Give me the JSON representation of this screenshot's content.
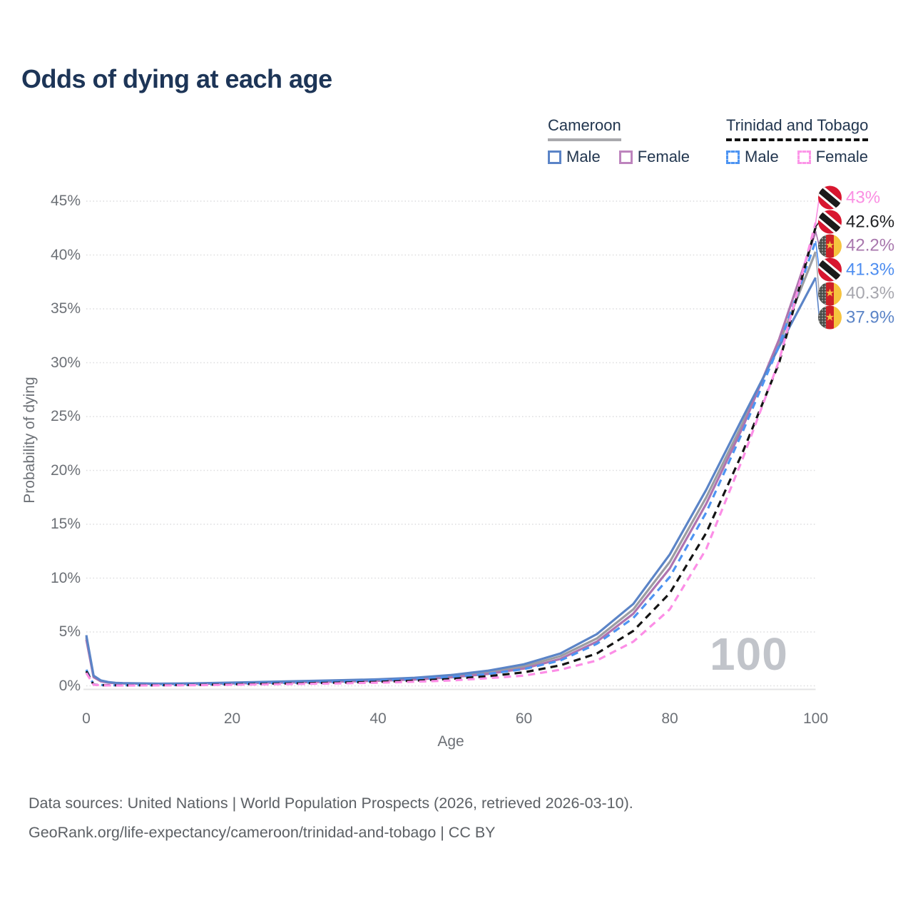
{
  "title": "Odds of dying at each age",
  "legend": {
    "groups": [
      {
        "id": "cameroon",
        "country": "Cameroon",
        "line_style": "solid",
        "underline_color": "#a9a9ad",
        "items": [
          {
            "label": "Male",
            "color": "#5b84c7"
          },
          {
            "label": "Female",
            "color": "#bd84bd"
          }
        ]
      },
      {
        "id": "trinidad-and-tobago",
        "country": "Trinidad and Tobago",
        "line_style": "dashed",
        "underline_color": "#111111",
        "items": [
          {
            "label": "Male",
            "color": "#4d94f2"
          },
          {
            "label": "Female",
            "color": "#fc96e8"
          }
        ]
      }
    ]
  },
  "watermark": "100",
  "footer": {
    "line1": "Data sources: United Nations | World Population Prospects (2026, retrieved 2026-03-10).",
    "line2": "GeoRank.org/life-expectancy/cameroon/trinidad-and-tobago | CC BY"
  },
  "chart_data": {
    "type": "line",
    "title": "Odds of dying at each age",
    "xlabel": "Age",
    "ylabel": "Probability of dying",
    "xlim": [
      0,
      100
    ],
    "ylim_percent": [
      0,
      45
    ],
    "grid": "horizontal-dotted",
    "x_ticks": [
      0,
      20,
      40,
      60,
      80,
      100
    ],
    "y_ticks": [
      "45%",
      "40%",
      "35%",
      "30%",
      "25%",
      "20%",
      "15%",
      "10%",
      "5%",
      "0%"
    ],
    "y_tick_values": [
      45,
      40,
      35,
      30,
      25,
      20,
      15,
      10,
      5,
      0
    ],
    "ages": [
      0,
      1,
      2,
      3,
      4,
      5,
      10,
      15,
      20,
      25,
      30,
      35,
      40,
      45,
      50,
      55,
      60,
      65,
      70,
      75,
      80,
      85,
      90,
      95,
      100
    ],
    "series": [
      {
        "id": "cm-both",
        "name": "Cameroon",
        "sex": "both",
        "color": "#9c9da2",
        "dash": "solid",
        "values_percent": [
          4.5,
          0.88,
          0.46,
          0.32,
          0.26,
          0.23,
          0.18,
          0.21,
          0.26,
          0.33,
          0.39,
          0.46,
          0.53,
          0.66,
          0.88,
          1.25,
          1.8,
          2.75,
          4.4,
          7.1,
          11.5,
          17.5,
          24.4,
          31.8,
          40.3
        ]
      },
      {
        "id": "cm-female",
        "name": "Cameroon",
        "sex": "female",
        "color": "#af74af",
        "dash": "solid",
        "values_percent": [
          4.3,
          0.8,
          0.42,
          0.3,
          0.24,
          0.22,
          0.17,
          0.18,
          0.22,
          0.28,
          0.34,
          0.4,
          0.47,
          0.58,
          0.78,
          1.1,
          1.6,
          2.5,
          4.1,
          6.7,
          10.9,
          16.9,
          24.0,
          32.2,
          42.2
        ]
      },
      {
        "id": "cm-male",
        "name": "Cameroon",
        "sex": "male",
        "color": "#5b84c7",
        "dash": "solid",
        "values_percent": [
          4.7,
          0.95,
          0.5,
          0.35,
          0.28,
          0.25,
          0.2,
          0.23,
          0.3,
          0.38,
          0.45,
          0.52,
          0.6,
          0.75,
          1.0,
          1.4,
          2.0,
          3.0,
          4.8,
          7.6,
          12.2,
          18.2,
          24.9,
          31.5,
          37.9
        ]
      },
      {
        "id": "tt-male",
        "name": "Trinidad and Tobago",
        "sex": "male",
        "color": "#4d94f2",
        "dash": "dashed",
        "values_percent": [
          1.5,
          0.12,
          0.07,
          0.06,
          0.05,
          0.05,
          0.06,
          0.1,
          0.18,
          0.25,
          0.3,
          0.38,
          0.47,
          0.6,
          0.8,
          1.1,
          1.55,
          2.35,
          3.9,
          6.3,
          10.1,
          16.1,
          23.6,
          31.6,
          41.3
        ]
      },
      {
        "id": "tt-both",
        "name": "Trinidad and Tobago",
        "sex": "both",
        "color": "#141414",
        "dash": "dashed",
        "values_percent": [
          1.35,
          0.11,
          0.06,
          0.05,
          0.045,
          0.04,
          0.05,
          0.08,
          0.14,
          0.19,
          0.24,
          0.3,
          0.37,
          0.48,
          0.64,
          0.88,
          1.25,
          1.9,
          3.0,
          5.1,
          8.6,
          14.2,
          21.7,
          30.0,
          42.6
        ]
      },
      {
        "id": "tt-female",
        "name": "Trinidad and Tobago",
        "sex": "female",
        "color": "#fc8ee6",
        "dash": "dashed",
        "values_percent": [
          1.2,
          0.1,
          0.05,
          0.04,
          0.035,
          0.03,
          0.04,
          0.06,
          0.1,
          0.14,
          0.18,
          0.23,
          0.29,
          0.38,
          0.5,
          0.7,
          0.95,
          1.5,
          2.35,
          4.1,
          7.1,
          12.7,
          21.1,
          30.2,
          43.0
        ]
      }
    ],
    "end_labels": [
      {
        "text": "43%",
        "series": "tt-female",
        "flag": "tt",
        "flag_name": "trinidad-and-tobago-flag",
        "color": "#fa8fe2",
        "value_percent": 43.0
      },
      {
        "text": "42.6%",
        "series": "tt-both",
        "flag": "tt",
        "flag_name": "trinidad-and-tobago-flag",
        "color": "#202124",
        "value_percent": 42.6
      },
      {
        "text": "42.2%",
        "series": "cm-female",
        "flag": "cm",
        "flag_name": "cameroon-flag",
        "color": "#a877ad",
        "value_percent": 42.2
      },
      {
        "text": "41.3%",
        "series": "tt-male",
        "flag": "tt",
        "flag_name": "trinidad-and-tobago-flag",
        "color": "#4d8df0",
        "value_percent": 41.3
      },
      {
        "text": "40.3%",
        "series": "cm-both",
        "flag": "cm",
        "flag_name": "cameroon-flag",
        "color": "#a7a7ae",
        "value_percent": 40.3
      },
      {
        "text": "37.9%",
        "series": "cm-male",
        "flag": "cm",
        "flag_name": "cameroon-flag",
        "color": "#5b84c7",
        "value_percent": 37.9
      }
    ]
  }
}
